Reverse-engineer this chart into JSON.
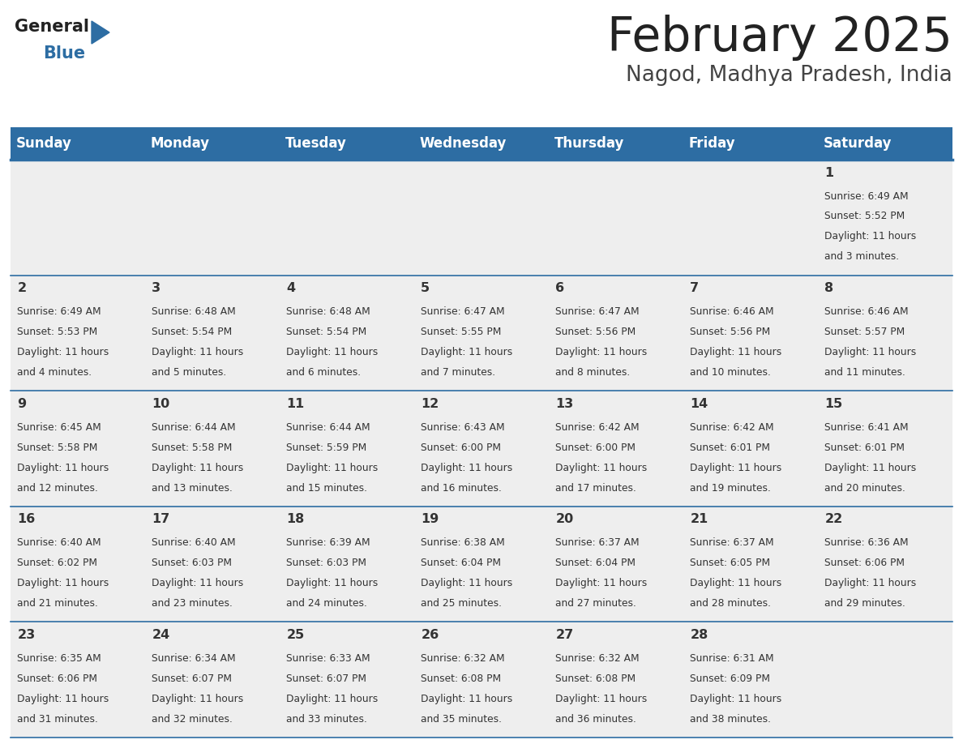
{
  "title": "February 2025",
  "subtitle": "Nagod, Madhya Pradesh, India",
  "header_color": "#2d6da3",
  "header_text_color": "#ffffff",
  "day_names": [
    "Sunday",
    "Monday",
    "Tuesday",
    "Wednesday",
    "Thursday",
    "Friday",
    "Saturday"
  ],
  "background_color": "#ffffff",
  "cell_bg": "#eeeeee",
  "title_color": "#222222",
  "subtitle_color": "#444444",
  "date_color": "#333333",
  "info_color": "#333333",
  "line_color": "#2d6da3",
  "logo_general_color": "#222222",
  "logo_blue_color": "#2d6da3",
  "logo_triangle_color": "#2d6da3",
  "days": [
    {
      "date": 1,
      "row": 0,
      "col": 6,
      "sunrise": "6:49 AM",
      "sunset": "5:52 PM",
      "daylight": "11 hours and 3 minutes."
    },
    {
      "date": 2,
      "row": 1,
      "col": 0,
      "sunrise": "6:49 AM",
      "sunset": "5:53 PM",
      "daylight": "11 hours and 4 minutes."
    },
    {
      "date": 3,
      "row": 1,
      "col": 1,
      "sunrise": "6:48 AM",
      "sunset": "5:54 PM",
      "daylight": "11 hours and 5 minutes."
    },
    {
      "date": 4,
      "row": 1,
      "col": 2,
      "sunrise": "6:48 AM",
      "sunset": "5:54 PM",
      "daylight": "11 hours and 6 minutes."
    },
    {
      "date": 5,
      "row": 1,
      "col": 3,
      "sunrise": "6:47 AM",
      "sunset": "5:55 PM",
      "daylight": "11 hours and 7 minutes."
    },
    {
      "date": 6,
      "row": 1,
      "col": 4,
      "sunrise": "6:47 AM",
      "sunset": "5:56 PM",
      "daylight": "11 hours and 8 minutes."
    },
    {
      "date": 7,
      "row": 1,
      "col": 5,
      "sunrise": "6:46 AM",
      "sunset": "5:56 PM",
      "daylight": "11 hours and 10 minutes."
    },
    {
      "date": 8,
      "row": 1,
      "col": 6,
      "sunrise": "6:46 AM",
      "sunset": "5:57 PM",
      "daylight": "11 hours and 11 minutes."
    },
    {
      "date": 9,
      "row": 2,
      "col": 0,
      "sunrise": "6:45 AM",
      "sunset": "5:58 PM",
      "daylight": "11 hours and 12 minutes."
    },
    {
      "date": 10,
      "row": 2,
      "col": 1,
      "sunrise": "6:44 AM",
      "sunset": "5:58 PM",
      "daylight": "11 hours and 13 minutes."
    },
    {
      "date": 11,
      "row": 2,
      "col": 2,
      "sunrise": "6:44 AM",
      "sunset": "5:59 PM",
      "daylight": "11 hours and 15 minutes."
    },
    {
      "date": 12,
      "row": 2,
      "col": 3,
      "sunrise": "6:43 AM",
      "sunset": "6:00 PM",
      "daylight": "11 hours and 16 minutes."
    },
    {
      "date": 13,
      "row": 2,
      "col": 4,
      "sunrise": "6:42 AM",
      "sunset": "6:00 PM",
      "daylight": "11 hours and 17 minutes."
    },
    {
      "date": 14,
      "row": 2,
      "col": 5,
      "sunrise": "6:42 AM",
      "sunset": "6:01 PM",
      "daylight": "11 hours and 19 minutes."
    },
    {
      "date": 15,
      "row": 2,
      "col": 6,
      "sunrise": "6:41 AM",
      "sunset": "6:01 PM",
      "daylight": "11 hours and 20 minutes."
    },
    {
      "date": 16,
      "row": 3,
      "col": 0,
      "sunrise": "6:40 AM",
      "sunset": "6:02 PM",
      "daylight": "11 hours and 21 minutes."
    },
    {
      "date": 17,
      "row": 3,
      "col": 1,
      "sunrise": "6:40 AM",
      "sunset": "6:03 PM",
      "daylight": "11 hours and 23 minutes."
    },
    {
      "date": 18,
      "row": 3,
      "col": 2,
      "sunrise": "6:39 AM",
      "sunset": "6:03 PM",
      "daylight": "11 hours and 24 minutes."
    },
    {
      "date": 19,
      "row": 3,
      "col": 3,
      "sunrise": "6:38 AM",
      "sunset": "6:04 PM",
      "daylight": "11 hours and 25 minutes."
    },
    {
      "date": 20,
      "row": 3,
      "col": 4,
      "sunrise": "6:37 AM",
      "sunset": "6:04 PM",
      "daylight": "11 hours and 27 minutes."
    },
    {
      "date": 21,
      "row": 3,
      "col": 5,
      "sunrise": "6:37 AM",
      "sunset": "6:05 PM",
      "daylight": "11 hours and 28 minutes."
    },
    {
      "date": 22,
      "row": 3,
      "col": 6,
      "sunrise": "6:36 AM",
      "sunset": "6:06 PM",
      "daylight": "11 hours and 29 minutes."
    },
    {
      "date": 23,
      "row": 4,
      "col": 0,
      "sunrise": "6:35 AM",
      "sunset": "6:06 PM",
      "daylight": "11 hours and 31 minutes."
    },
    {
      "date": 24,
      "row": 4,
      "col": 1,
      "sunrise": "6:34 AM",
      "sunset": "6:07 PM",
      "daylight": "11 hours and 32 minutes."
    },
    {
      "date": 25,
      "row": 4,
      "col": 2,
      "sunrise": "6:33 AM",
      "sunset": "6:07 PM",
      "daylight": "11 hours and 33 minutes."
    },
    {
      "date": 26,
      "row": 4,
      "col": 3,
      "sunrise": "6:32 AM",
      "sunset": "6:08 PM",
      "daylight": "11 hours and 35 minutes."
    },
    {
      "date": 27,
      "row": 4,
      "col": 4,
      "sunrise": "6:32 AM",
      "sunset": "6:08 PM",
      "daylight": "11 hours and 36 minutes."
    },
    {
      "date": 28,
      "row": 4,
      "col": 5,
      "sunrise": "6:31 AM",
      "sunset": "6:09 PM",
      "daylight": "11 hours and 38 minutes."
    }
  ]
}
